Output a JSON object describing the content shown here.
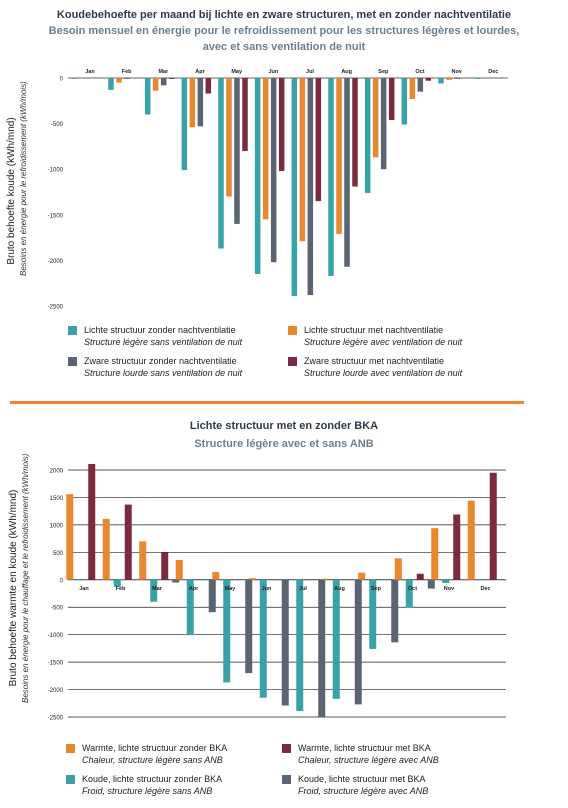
{
  "colors": {
    "teal": "#38a2a8",
    "orange": "#e8872e",
    "slate": "#5b6472",
    "maroon": "#7b2a40",
    "title_dark": "#2f3a4b",
    "title_grey": "#6b7f8f",
    "divider": "#e8872e"
  },
  "chart_data": [
    {
      "type": "bar",
      "title": "Koudebehoefte per maand bij lichte en zware structuren, met en zonder nachtventilatie",
      "subtitle_line1": "Besoin mensuel en énergie pour le refroidissement pour les structures légères et lourdes,",
      "subtitle_line2": "avec et sans ventilation de nuit",
      "ylabel": "Bruto behoefte koude (kWh/mnd)",
      "ylabel_fr": "Besoins en énergie pour le refroidissement (kWh/mois)",
      "ylim": [
        -2500,
        0
      ],
      "yticks": [
        "0",
        "-500",
        "-1000",
        "-1500",
        "-2000",
        "-2500"
      ],
      "grid": false,
      "legend_position": "bottom",
      "categories": [
        "Jan",
        "Feb",
        "Mar",
        "Apr",
        "May",
        "Jun",
        "Jul",
        "Aug",
        "Sep",
        "Oct",
        "Nov",
        "Dec"
      ],
      "series": [
        {
          "name": "Lichte structuur zonder nachtventilatie",
          "name_fr": "Structure légère sans ventilation de nuit",
          "color": "#38a2a8",
          "values": [
            -10,
            -130,
            -400,
            -1010,
            -1870,
            -2150,
            -2390,
            -2170,
            -1260,
            -510,
            -60,
            -10
          ]
        },
        {
          "name": "Lichte structuur met nachtventilatie",
          "name_fr": "Structure légère avec ventilation de nuit",
          "color": "#e8872e",
          "values": [
            0,
            -50,
            -140,
            -540,
            -1300,
            -1550,
            -1790,
            -1710,
            -870,
            -230,
            -20,
            0
          ]
        },
        {
          "name": "Zware structuur zonder nachtventilatie",
          "name_fr": "Structure lourde sans ventilation de nuit",
          "color": "#5b6472",
          "values": [
            0,
            -10,
            -80,
            -530,
            -1600,
            -2020,
            -2380,
            -2070,
            -1000,
            -150,
            -10,
            0
          ]
        },
        {
          "name": "Zware structuur met nachtventilatie",
          "name_fr": "Structure lourde avec ventilation de nuit",
          "color": "#7b2a40",
          "values": [
            0,
            0,
            -10,
            -170,
            -800,
            -1020,
            -1350,
            -1190,
            -460,
            -30,
            0,
            0
          ]
        }
      ]
    },
    {
      "type": "bar",
      "title": "Lichte structuur met en zonder BKA",
      "subtitle": "Structure légère avec et sans ANB",
      "ylabel": "Bruto behoefte warmte en koude (kWh/mnd)",
      "ylabel_fr": "Besoins en énergie pour le chauffage et le refroidissement (kWh/mois)",
      "ylim": [
        -2500,
        2000
      ],
      "yticks": [
        "2000",
        "1500",
        "1000",
        "500",
        "0",
        "-500",
        "-1000",
        "-1500",
        "-2000",
        "-2500"
      ],
      "grid": true,
      "legend_position": "bottom",
      "categories": [
        "Jan",
        "Feb",
        "Mar",
        "Apr",
        "May",
        "Jun",
        "Jul",
        "Aug",
        "Sep",
        "Oct",
        "Nov",
        "Dec"
      ],
      "series": [
        {
          "name": "Warmte, lichte structuur zonder BKA",
          "name_fr": "Chaleur, structure légère sans ANB",
          "color": "#e8872e",
          "values": [
            1560,
            1110,
            700,
            360,
            140,
            30,
            0,
            20,
            130,
            390,
            940,
            1440
          ]
        },
        {
          "name": "Koude, lichte structuur zonder BKA",
          "name_fr": "Froid, structure légère sans ANB",
          "color": "#38a2a8",
          "values": [
            -10,
            -130,
            -400,
            -1010,
            -1870,
            -2150,
            -2390,
            -2170,
            -1260,
            -510,
            -60,
            -10
          ]
        },
        {
          "name": "Warmte, lichte structuur met BKA",
          "name_fr": "Chaleur, structure légère avec ANB",
          "color": "#7b2a40",
          "values": [
            2110,
            1370,
            500,
            0,
            0,
            0,
            0,
            0,
            0,
            110,
            1190,
            1950
          ]
        },
        {
          "name": "Koude, lichte structuur met BKA",
          "name_fr": "Froid, structure légère avec ANB",
          "color": "#5b6472",
          "values": [
            0,
            0,
            -50,
            -590,
            -1700,
            -2290,
            -2500,
            -2270,
            -1140,
            -160,
            0,
            0
          ]
        }
      ]
    }
  ]
}
